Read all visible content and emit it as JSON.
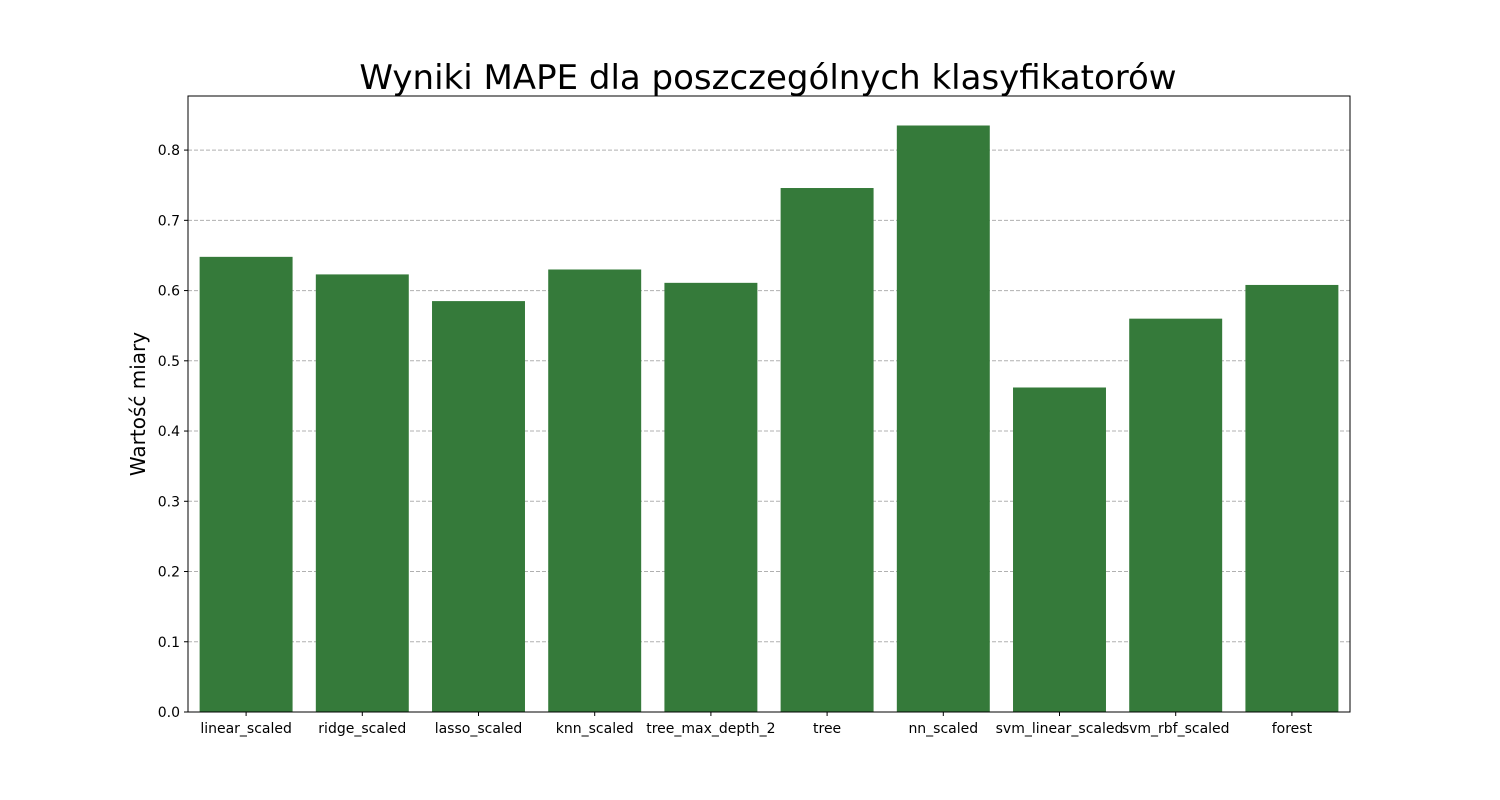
{
  "chart_data": {
    "type": "bar",
    "title": "Wyniki MAPE dla poszczególnych klasyfikatorów",
    "xlabel": "",
    "ylabel": "Wartość miary",
    "categories": [
      "linear_scaled",
      "ridge_scaled",
      "lasso_scaled",
      "knn_scaled",
      "tree_max_depth_2",
      "tree",
      "nn_scaled",
      "svm_linear_scaled",
      "svm_rbf_scaled",
      "forest"
    ],
    "values": [
      0.648,
      0.623,
      0.585,
      0.63,
      0.611,
      0.746,
      0.835,
      0.462,
      0.56,
      0.608
    ],
    "ylim": [
      0,
      0.877
    ],
    "yticks": [
      0.0,
      0.1,
      0.2,
      0.3,
      0.4,
      0.5,
      0.6,
      0.7,
      0.8
    ],
    "ytick_labels": [
      "0.0",
      "0.1",
      "0.2",
      "0.3",
      "0.4",
      "0.5",
      "0.6",
      "0.7",
      "0.8"
    ],
    "grid": "y",
    "bar_color": "#357a3a",
    "grid_color": "#b0b0b0"
  }
}
